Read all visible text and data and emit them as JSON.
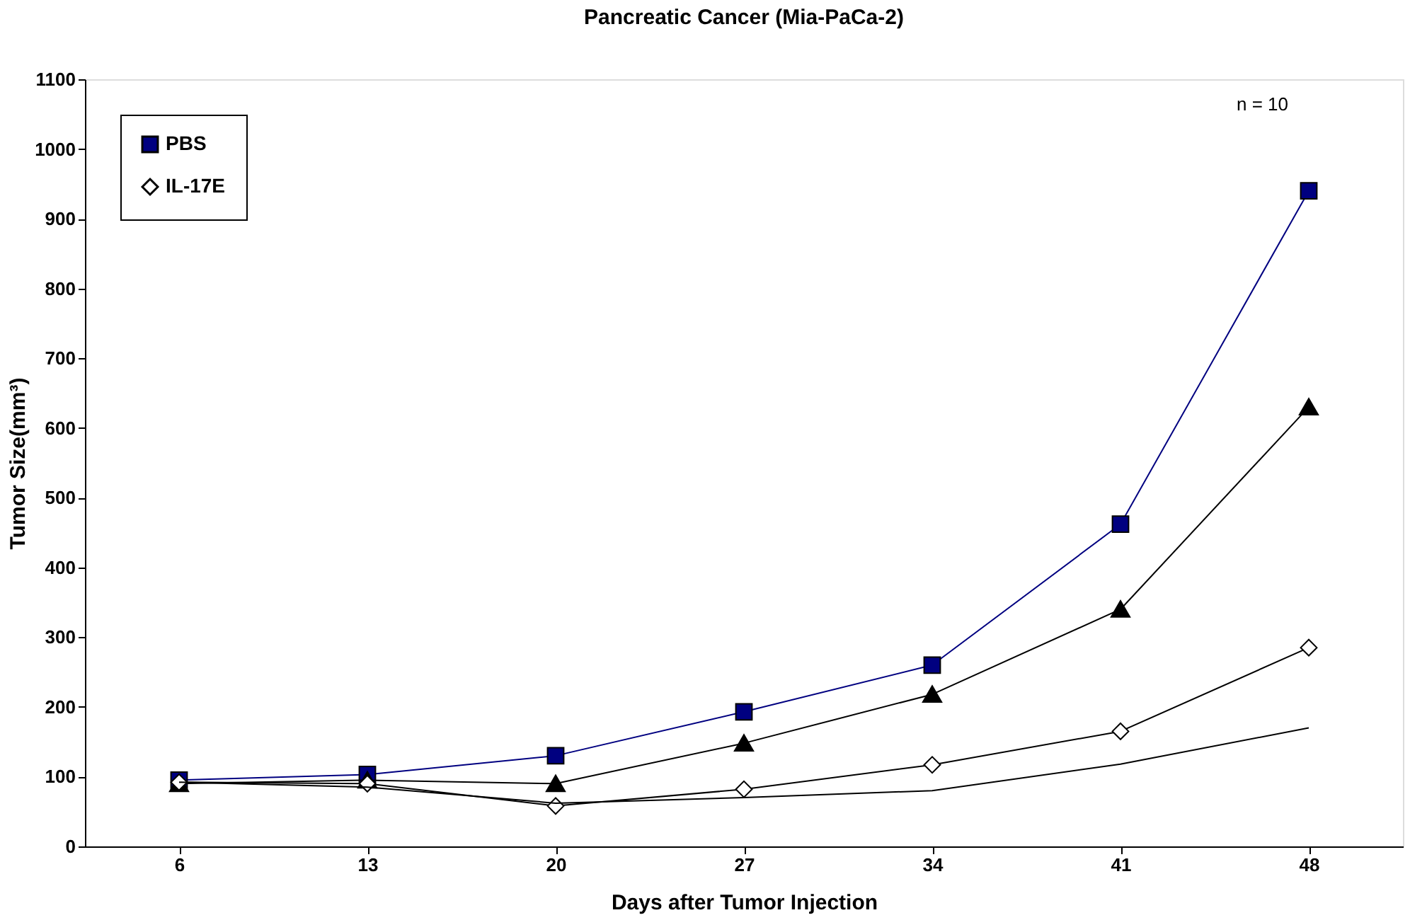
{
  "chart_data": {
    "type": "line",
    "title": "Pancreatic Cancer (Mia-PaCa-2)",
    "xlabel": "Days after Tumor Injection",
    "ylabel": "Tumor Size(mm³)",
    "categories": [
      "6",
      "13",
      "20",
      "27",
      "34",
      "41",
      "48"
    ],
    "series": [
      {
        "name": "PBS",
        "color": "#000080",
        "marker": "square",
        "values": [
          95,
          103,
          130,
          193,
          260,
          462,
          940
        ]
      },
      {
        "color": "#000000",
        "marker": "triangle",
        "values": [
          90,
          95,
          90,
          148,
          218,
          340,
          630
        ]
      },
      {
        "name": "IL-17E",
        "color": "#000000",
        "marker": "diamond",
        "values": [
          92,
          90,
          58,
          82,
          117,
          165,
          285
        ]
      },
      {
        "color": "#000000",
        "marker": "none",
        "values": [
          92,
          85,
          62,
          70,
          80,
          118,
          170
        ]
      }
    ],
    "ylim": [
      0,
      1100
    ],
    "yticks": [
      0,
      100,
      200,
      300,
      400,
      500,
      600,
      700,
      800,
      900,
      1000,
      1100
    ],
    "grid": false,
    "legend": "top left",
    "line_style": "solid",
    "annotations": [
      "n = 10"
    ]
  }
}
